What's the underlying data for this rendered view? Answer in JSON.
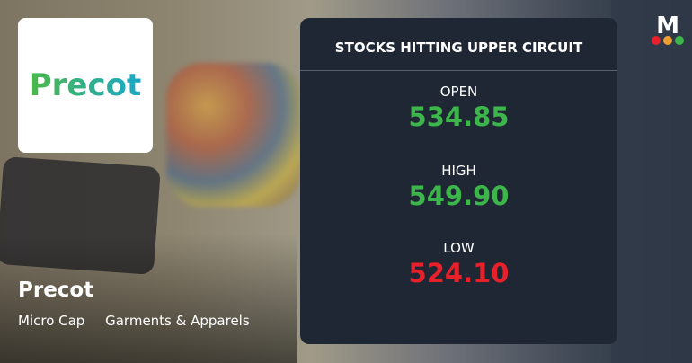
{
  "company": {
    "logo_text": "Precot",
    "name": "Precot",
    "tags": [
      "Micro Cap",
      "Garments & Apparels"
    ]
  },
  "card": {
    "title": "STOCKS HITTING UPPER CIRCUIT",
    "open_label": "OPEN",
    "open_value": "534.85",
    "high_label": "HIGH",
    "high_value": "549.90",
    "low_label": "LOW",
    "low_value": "524.10"
  },
  "brand": {
    "letter": "M",
    "dot_colors": [
      "#e8202a",
      "#f0a030",
      "#3cb54a"
    ]
  },
  "colors": {
    "up": "#3cb54a",
    "down": "#e8202a",
    "card_bg": "#1f2735"
  }
}
